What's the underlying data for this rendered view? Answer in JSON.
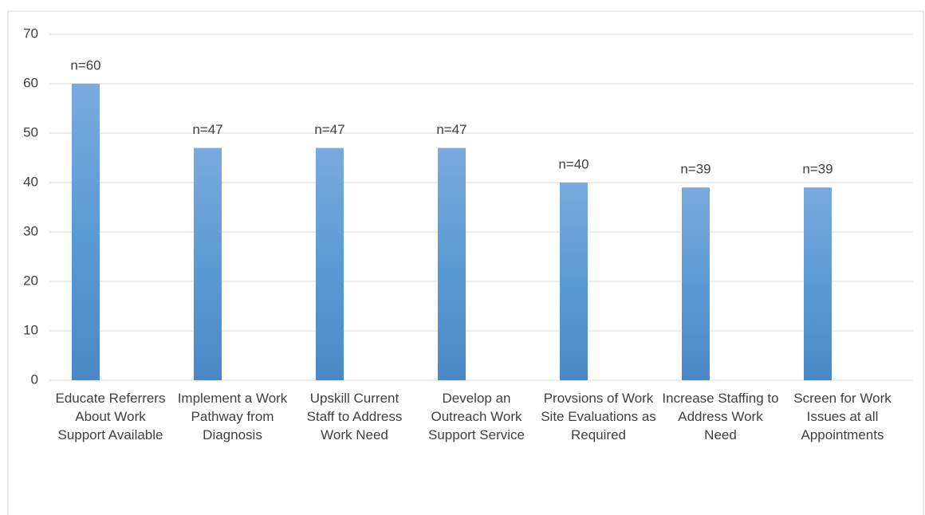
{
  "chart_data": {
    "type": "bar",
    "categories": [
      "Educate Referrers About Work Support Available",
      "Implement a Work Pathway from Diagnosis",
      "Upskill Current Staff to Address Work Need",
      "Develop an Outreach Work Support Service",
      "Provsions of Work Site Evaluations as Required",
      "Increase Staffing to Address Work Need",
      "Screen for Work Issues at all Appointments"
    ],
    "values": [
      60,
      47,
      47,
      47,
      40,
      39,
      39
    ],
    "value_labels": [
      "n=60",
      "n=47",
      "n=47",
      "n=47",
      "n=40",
      "n=39",
      "n=39"
    ],
    "color": "#5b9bd5",
    "ylim": [
      0,
      70
    ],
    "yticks": [
      0,
      10,
      20,
      30,
      40,
      50,
      60,
      70
    ],
    "grid": true
  }
}
